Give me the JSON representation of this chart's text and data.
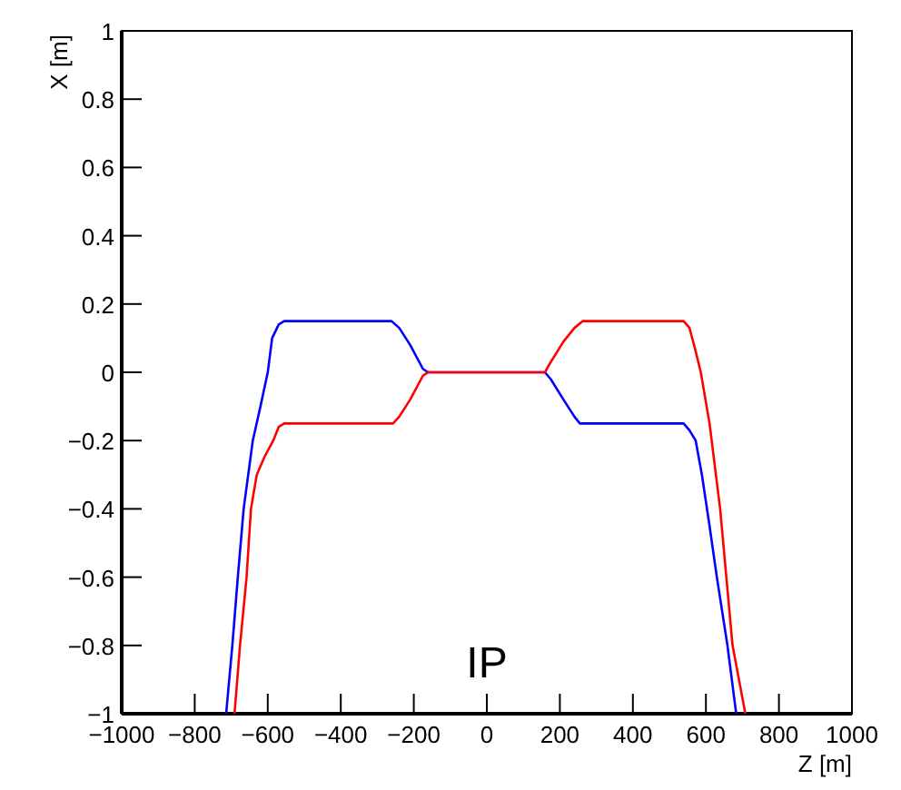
{
  "chart_data": {
    "type": "line",
    "xlabel": "Z [m]",
    "ylabel": "X [m]",
    "xlim": [
      -1000,
      1000
    ],
    "ylim": [
      -1,
      1
    ],
    "xticks": [
      -1000,
      -800,
      -600,
      -400,
      -200,
      0,
      200,
      400,
      600,
      800,
      1000
    ],
    "yticks": [
      -1,
      -0.8,
      -0.6,
      -0.4,
      -0.2,
      0,
      0.2,
      0.4,
      0.6,
      0.8,
      1
    ],
    "grid": false,
    "marker": "none",
    "line_style": "solid",
    "annotations": [
      "IP"
    ],
    "series": [
      {
        "color": "#0000ff",
        "x": [
          -714,
          -697,
          -682,
          -666,
          -641,
          -620,
          -600,
          -588,
          -570,
          -555,
          -261,
          -240,
          -210,
          -175,
          -161,
          159,
          175,
          210,
          240,
          255,
          539,
          555,
          572,
          589,
          610,
          630,
          659,
          683
        ],
        "values": [
          -1,
          -0.8,
          -0.6,
          -0.4,
          -0.2,
          -0.1,
          0,
          0.1,
          0.14,
          0.15,
          0.15,
          0.13,
          0.08,
          0.01,
          0,
          0,
          -0.02,
          -0.08,
          -0.13,
          -0.15,
          -0.15,
          -0.17,
          -0.2,
          -0.3,
          -0.45,
          -0.6,
          -0.8,
          -1
        ]
      },
      {
        "color": "#ff0000",
        "x": [
          -691,
          -676,
          -658,
          -646,
          -630,
          -610,
          -585,
          -570,
          -555,
          -257,
          -240,
          -210,
          -175,
          -161,
          159,
          175,
          210,
          240,
          263,
          539,
          555,
          570,
          586,
          610,
          639,
          673,
          708
        ],
        "values": [
          -1,
          -0.8,
          -0.6,
          -0.4,
          -0.3,
          -0.25,
          -0.2,
          -0.16,
          -0.15,
          -0.15,
          -0.13,
          -0.08,
          -0.01,
          0,
          0,
          0.03,
          0.09,
          0.13,
          0.15,
          0.15,
          0.13,
          0.07,
          0,
          -0.15,
          -0.4,
          -0.8,
          -1
        ]
      }
    ]
  }
}
